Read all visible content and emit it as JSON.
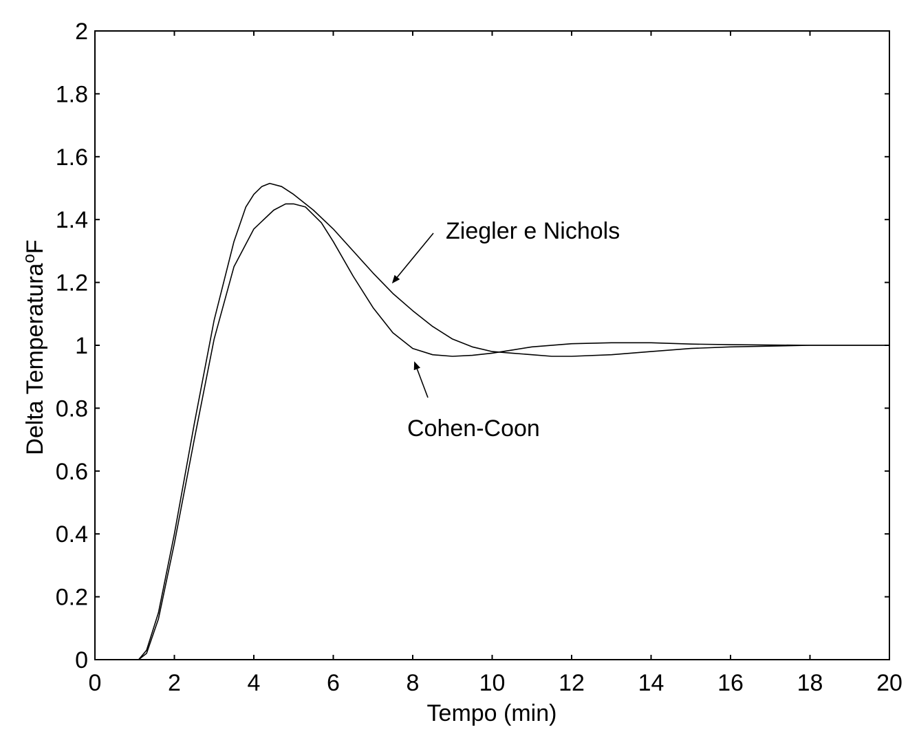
{
  "chart_data": {
    "type": "line",
    "title": "",
    "xlabel": "Tempo (min)",
    "ylabel": "Delta Temperatura",
    "ylabel_unit": "F",
    "ylabel_degree": "o",
    "xlim": [
      0,
      20
    ],
    "ylim": [
      0,
      2
    ],
    "xticks": [
      0,
      2,
      4,
      6,
      8,
      10,
      12,
      14,
      16,
      18,
      20
    ],
    "yticks": [
      0,
      0.2,
      0.4,
      0.6,
      0.8,
      1,
      1.2,
      1.4,
      1.6,
      1.8,
      2
    ],
    "grid": false,
    "line_color": "#000000",
    "series": [
      {
        "annotation": "Ziegler e Nichols",
        "points": [
          [
            0,
            0
          ],
          [
            1.1,
            0
          ],
          [
            1.3,
            0.03
          ],
          [
            1.6,
            0.15
          ],
          [
            2,
            0.4
          ],
          [
            2.5,
            0.75
          ],
          [
            3,
            1.08
          ],
          [
            3.5,
            1.33
          ],
          [
            3.8,
            1.44
          ],
          [
            4,
            1.48
          ],
          [
            4.2,
            1.505
          ],
          [
            4.4,
            1.515
          ],
          [
            4.7,
            1.505
          ],
          [
            5,
            1.48
          ],
          [
            5.5,
            1.43
          ],
          [
            6,
            1.37
          ],
          [
            6.5,
            1.3
          ],
          [
            7,
            1.23
          ],
          [
            7.5,
            1.165
          ],
          [
            8,
            1.11
          ],
          [
            8.5,
            1.06
          ],
          [
            9,
            1.02
          ],
          [
            9.5,
            0.995
          ],
          [
            10,
            0.98
          ],
          [
            10.5,
            0.975
          ],
          [
            11,
            0.97
          ],
          [
            11.5,
            0.965
          ],
          [
            12,
            0.965
          ],
          [
            13,
            0.97
          ],
          [
            14,
            0.98
          ],
          [
            15,
            0.99
          ],
          [
            16,
            0.995
          ],
          [
            18,
            1
          ],
          [
            20,
            1
          ]
        ]
      },
      {
        "annotation": "Cohen-Coon",
        "points": [
          [
            0,
            0
          ],
          [
            1.1,
            0
          ],
          [
            1.3,
            0.02
          ],
          [
            1.6,
            0.13
          ],
          [
            2,
            0.37
          ],
          [
            2.5,
            0.7
          ],
          [
            3,
            1.02
          ],
          [
            3.5,
            1.25
          ],
          [
            4,
            1.37
          ],
          [
            4.5,
            1.43
          ],
          [
            4.8,
            1.45
          ],
          [
            5,
            1.45
          ],
          [
            5.3,
            1.44
          ],
          [
            5.7,
            1.39
          ],
          [
            6,
            1.33
          ],
          [
            6.5,
            1.22
          ],
          [
            7,
            1.12
          ],
          [
            7.5,
            1.04
          ],
          [
            8,
            0.99
          ],
          [
            8.5,
            0.97
          ],
          [
            9,
            0.965
          ],
          [
            9.5,
            0.968
          ],
          [
            10,
            0.975
          ],
          [
            10.5,
            0.985
          ],
          [
            11,
            0.995
          ],
          [
            12,
            1.005
          ],
          [
            13,
            1.008
          ],
          [
            14,
            1.008
          ],
          [
            15,
            1.004
          ],
          [
            16,
            1.002
          ],
          [
            18,
            1
          ],
          [
            20,
            1
          ]
        ]
      }
    ],
    "annotations": [
      {
        "text": "Ziegler e Nichols",
        "arrow_to": [
          7.5,
          1.2
        ]
      },
      {
        "text": "Cohen-Coon",
        "arrow_to": [
          8.05,
          0.945
        ]
      }
    ]
  }
}
